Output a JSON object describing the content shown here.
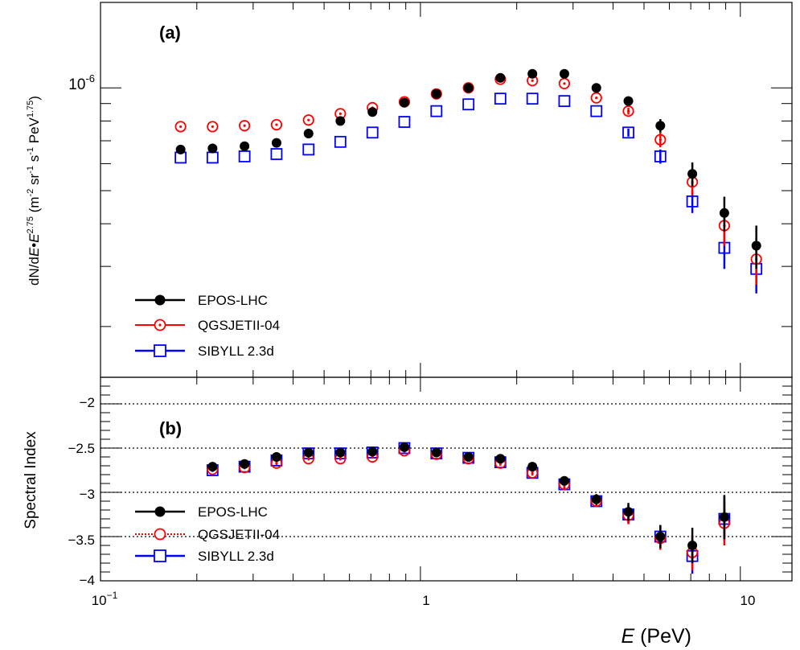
{
  "chart_data": [
    {
      "type": "scatter",
      "panel_label": "(a)",
      "xscale": "log",
      "yscale": "log",
      "xlim": [
        0.1,
        14.5
      ],
      "ylim": [
        1.42e-07,
        1.78e-06
      ],
      "ylabel": {
        "pre": "dN/d",
        "E1": "E",
        "dot": "•",
        "E2": "E",
        "exp1": "2.75",
        "units_a": " (m",
        "sup_a": "-2",
        "units_b": " sr",
        "sup_b": "-1",
        "units_c": " s",
        "sup_c": "-1",
        "units_d": " PeV",
        "sup_d": "1.75",
        "units_e": ")"
      },
      "yticks": [
        {
          "value": 1e-06,
          "mantissa": "10",
          "exponent": "-6"
        }
      ],
      "grid": false,
      "legend_position": "bottom-left",
      "x": [
        0.178,
        0.224,
        0.282,
        0.355,
        0.447,
        0.562,
        0.708,
        0.891,
        1.122,
        1.413,
        1.778,
        2.239,
        2.818,
        3.548,
        4.467,
        5.623,
        7.079,
        8.913,
        11.22
      ],
      "series": [
        {
          "name": "EPOS-LHC",
          "color": "#000000",
          "marker": "filled-circle",
          "values": [
            6.6e-07,
            6.65e-07,
            6.75e-07,
            6.9e-07,
            7.35e-07,
            8e-07,
            8.5e-07,
            9.05e-07,
            9.6e-07,
            1e-06,
            1.07e-06,
            1.1e-06,
            1.1e-06,
            1e-06,
            9.15e-07,
            7.75e-07,
            5.6e-07,
            4.3e-07,
            3.45e-07
          ],
          "errors": [
            0,
            0,
            0,
            0,
            0,
            0,
            0,
            0,
            0,
            0,
            0,
            0,
            0,
            0,
            2e-08,
            3.5e-08,
            4.5e-08,
            5e-08,
            5e-08
          ]
        },
        {
          "name": "QGSJETII-04",
          "color": "#ff0000",
          "marker": "open-circle-dot",
          "values": [
            7.7e-07,
            7.7e-07,
            7.75e-07,
            7.8e-07,
            8.05e-07,
            8.4e-07,
            8.75e-07,
            9.1e-07,
            9.6e-07,
            1e-06,
            1.06e-06,
            1.05e-06,
            1.03e-06,
            9.35e-07,
            8.55e-07,
            7.05e-07,
            5.3e-07,
            3.95e-07,
            3.15e-07
          ],
          "errors": [
            0,
            0,
            0,
            0,
            0,
            0,
            0,
            0,
            0,
            0,
            0,
            0,
            0,
            0,
            2e-08,
            3.5e-08,
            4.5e-08,
            5e-08,
            5e-08
          ]
        },
        {
          "name": "SIBYLL 2.3d",
          "color": "#0000ff",
          "marker": "open-square",
          "values": [
            6.25e-07,
            6.25e-07,
            6.3e-07,
            6.4e-07,
            6.6e-07,
            6.95e-07,
            7.4e-07,
            7.95e-07,
            8.55e-07,
            8.95e-07,
            9.3e-07,
            9.3e-07,
            9.15e-07,
            8.55e-07,
            7.4e-07,
            6.3e-07,
            4.65e-07,
            3.4e-07,
            2.95e-07
          ],
          "errors": [
            0,
            0,
            0,
            0,
            0,
            0,
            0,
            0,
            0,
            0,
            0,
            0,
            0,
            0,
            2e-08,
            3e-08,
            3.5e-08,
            4.5e-08,
            4.5e-08
          ]
        }
      ]
    },
    {
      "type": "scatter",
      "panel_label": "(b)",
      "xscale": "log",
      "xlim": [
        0.1,
        14.5
      ],
      "ylim": [
        -4,
        -1.7
      ],
      "xlabel": {
        "var": "E",
        "units": " (PeV)"
      },
      "ylabel": "Spectral Index",
      "yticks": [
        {
          "value": -2,
          "label": "−2"
        },
        {
          "value": -2.5,
          "label": "−2.5"
        },
        {
          "value": -3,
          "label": "−3"
        },
        {
          "value": -3.5,
          "label": "−3.5"
        },
        {
          "value": -4,
          "label": "−4"
        }
      ],
      "xticks": [
        {
          "value": 0.1,
          "mantissa": "10",
          "exponent": "−1"
        },
        {
          "value": 1,
          "mantissa": "1",
          "exponent": ""
        },
        {
          "value": 10,
          "mantissa": "10",
          "exponent": ""
        }
      ],
      "reference_lines": [
        -2,
        -2.5,
        -3,
        -3.5
      ],
      "grid": "dotted horizontal lines at -2, -2.5, -3, -3.5",
      "legend_position": "bottom-left",
      "x": [
        0.224,
        0.282,
        0.355,
        0.447,
        0.562,
        0.708,
        0.891,
        1.122,
        1.413,
        1.778,
        2.239,
        2.818,
        3.548,
        4.467,
        5.623,
        7.079,
        8.913
      ],
      "series": [
        {
          "name": "EPOS-LHC",
          "color": "#000000",
          "marker": "filled-circle",
          "values": [
            -2.71,
            -2.68,
            -2.6,
            -2.55,
            -2.55,
            -2.54,
            -2.49,
            -2.55,
            -2.6,
            -2.62,
            -2.71,
            -2.87,
            -3.08,
            -3.22,
            -3.5,
            -3.6,
            -3.28
          ],
          "errors": [
            0.02,
            0.02,
            0.02,
            0.02,
            0.02,
            0.02,
            0.02,
            0.02,
            0.02,
            0.03,
            0.03,
            0.05,
            0.06,
            0.1,
            0.13,
            0.2,
            0.25
          ]
        },
        {
          "name": "QGSJETII-04",
          "color": "#ff0000",
          "marker": "open-circle-dot",
          "values": [
            -2.74,
            -2.72,
            -2.67,
            -2.62,
            -2.62,
            -2.6,
            -2.53,
            -2.57,
            -2.62,
            -2.67,
            -2.78,
            -2.91,
            -3.1,
            -3.26,
            -3.52,
            -3.68,
            -3.35
          ],
          "errors": [
            0.02,
            0.02,
            0.02,
            0.02,
            0.02,
            0.02,
            0.02,
            0.02,
            0.02,
            0.03,
            0.03,
            0.05,
            0.06,
            0.1,
            0.13,
            0.2,
            0.25
          ]
        },
        {
          "name": "SIBYLL 2.3d",
          "color": "#0000ff",
          "marker": "open-square",
          "values": [
            -2.75,
            -2.71,
            -2.64,
            -2.56,
            -2.56,
            -2.55,
            -2.5,
            -2.56,
            -2.61,
            -2.66,
            -2.78,
            -2.91,
            -3.1,
            -3.25,
            -3.5,
            -3.72,
            -3.3
          ],
          "errors": [
            0.02,
            0.02,
            0.02,
            0.02,
            0.02,
            0.02,
            0.02,
            0.02,
            0.02,
            0.03,
            0.03,
            0.05,
            0.06,
            0.1,
            0.13,
            0.2,
            0.25
          ]
        }
      ]
    }
  ]
}
